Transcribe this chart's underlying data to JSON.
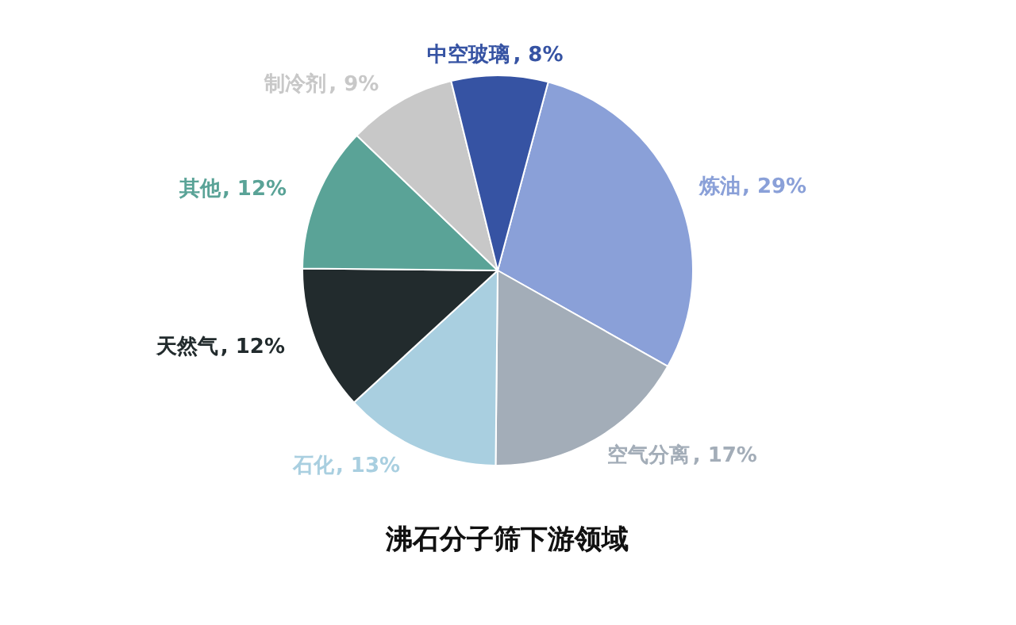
{
  "chart_data": {
    "type": "pie",
    "title": "沸石分子筛下游领域",
    "categories": [
      "炼油",
      "空气分离",
      "石化",
      "天然气",
      "其他",
      "制冷剂",
      "中空玻璃"
    ],
    "values": [
      29,
      17,
      13,
      12,
      12,
      9,
      8
    ],
    "colors": [
      "#8aa0d8",
      "#a3adb8",
      "#a9cfe0",
      "#222b2d",
      "#5aa397",
      "#c8c8c8",
      "#3653a3"
    ],
    "value_labels": [
      ", 29%",
      ", 17%",
      ", 13%",
      ", 12%",
      ", 12%",
      ", 9%",
      ", 8%"
    ]
  }
}
